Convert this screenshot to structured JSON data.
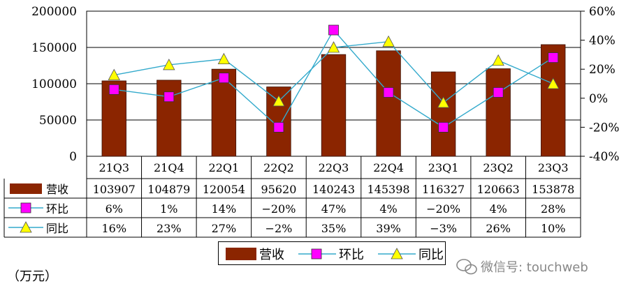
{
  "chart_data": {
    "type": "bar",
    "categories": [
      "21Q3",
      "21Q4",
      "22Q1",
      "22Q2",
      "22Q3",
      "22Q4",
      "23Q1",
      "23Q2",
      "23Q3"
    ],
    "ylim_left": [
      0,
      200000
    ],
    "yticks_left": [
      "200000",
      "150000",
      "100000",
      "50000",
      "0"
    ],
    "ylim_right": [
      -40,
      60
    ],
    "yticks_right": [
      "60%",
      "40%",
      "20%",
      "0%",
      "-20%",
      "-40%"
    ],
    "series": [
      {
        "name": "营收",
        "type": "bar",
        "color": "#8b2500",
        "values": [
          103907,
          104879,
          120054,
          95620,
          140243,
          145398,
          116327,
          120663,
          153878
        ],
        "labels": [
          "103907",
          "104879",
          "120054",
          "95620",
          "140243",
          "145398",
          "116327",
          "120663",
          "153878"
        ]
      },
      {
        "name": "环比",
        "type": "line",
        "marker": "square",
        "color": "#ff00ff",
        "line_color": "#33aacc",
        "values": [
          6,
          1,
          14,
          -20,
          47,
          4,
          -20,
          4,
          28
        ],
        "labels": [
          "6%",
          "1%",
          "14%",
          "−20%",
          "47%",
          "4%",
          "−20%",
          "4%",
          "28%"
        ]
      },
      {
        "name": "同比",
        "type": "line",
        "marker": "triangle",
        "color": "#ffff00",
        "line_color": "#33aacc",
        "values": [
          16,
          23,
          27,
          -2,
          35,
          39,
          -3,
          26,
          10
        ],
        "labels": [
          "16%",
          "23%",
          "27%",
          "−2%",
          "35%",
          "39%",
          "−3%",
          "26%",
          "10%"
        ]
      }
    ],
    "grid": true
  },
  "unit_label": "（万元）",
  "watermark": "微信号: touchweb"
}
